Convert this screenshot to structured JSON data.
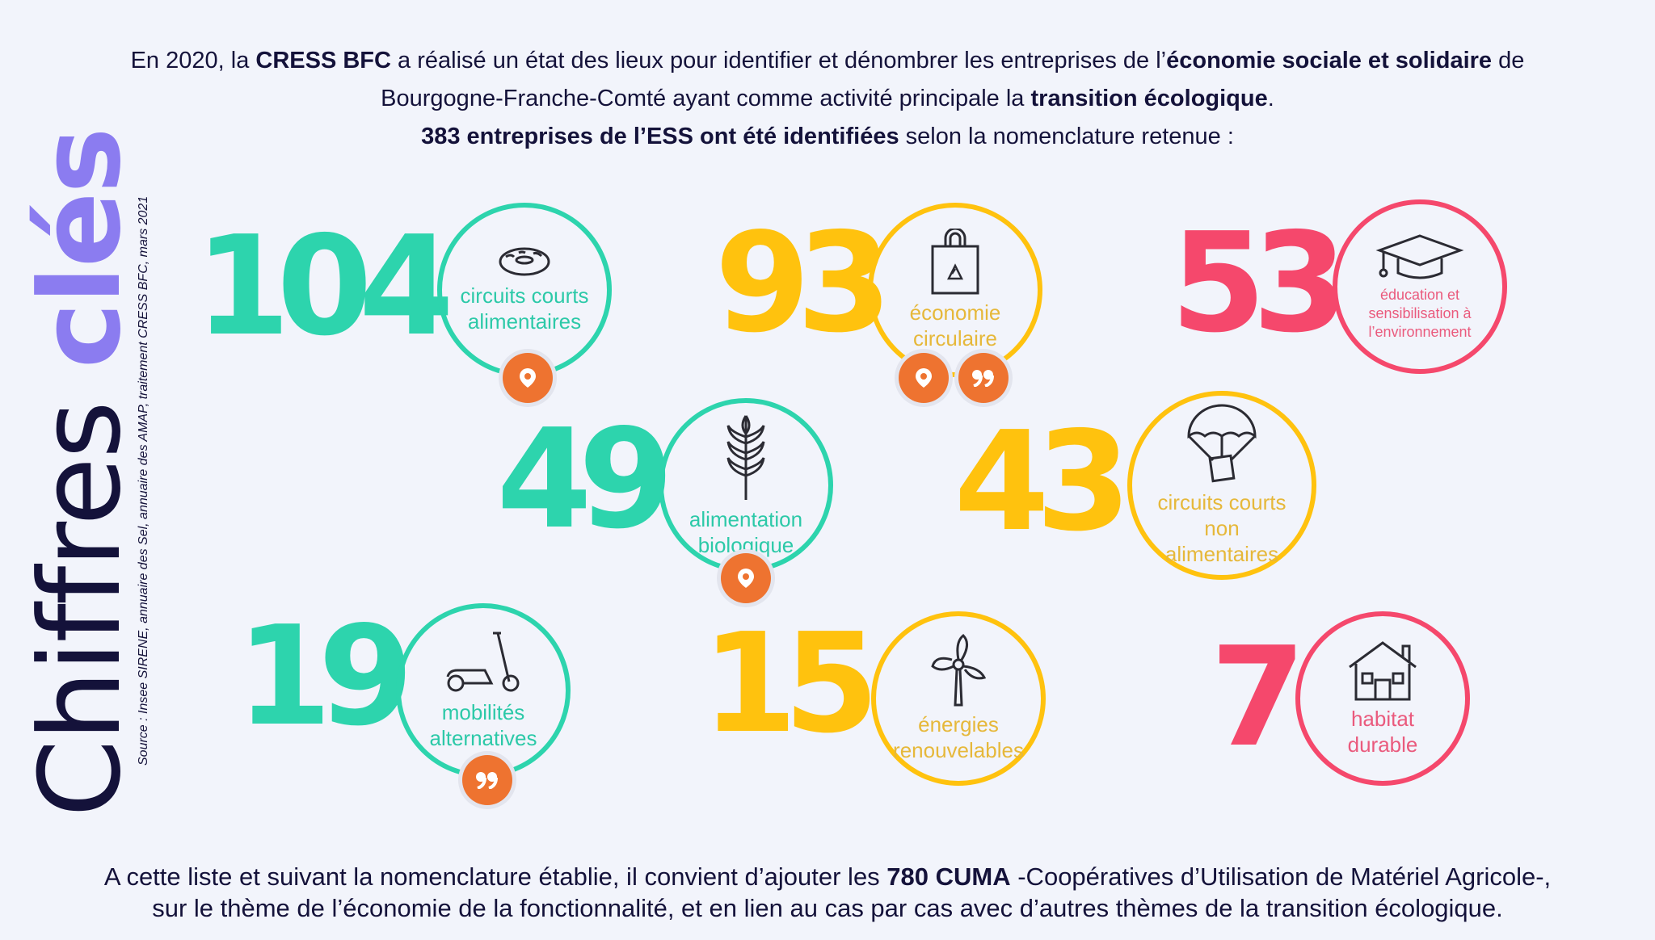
{
  "intro": {
    "line1": [
      "En 2020, la ",
      "CRESS BFC",
      " a réalisé un état des lieux pour identifier et dénombrer les entreprises de l’",
      "économie sociale et solidaire",
      " de"
    ],
    "line2": [
      "Bourgogne-Franche-Comté ayant comme activité principale la ",
      "transition écologique",
      "."
    ],
    "line3": [
      "383 entreprises de l’ESS ont été identifiées",
      " selon la nomenclature retenue :"
    ]
  },
  "title": {
    "part1": "Chiffres ",
    "part2": "clés"
  },
  "source": "Source : Insee SIRENE, annuaire des Sel, annuaire des AMAP, traitement CRESS BFC, mars 2021",
  "colors": {
    "teal": "#2dd4ad",
    "yellow": "#ffc20e",
    "pink": "#f5486c",
    "navy": "#14123a",
    "purple": "#8b7cf0",
    "badge": "#ee7330"
  },
  "stats": [
    {
      "value": "104",
      "label": "circuits courts alimentaires",
      "icon": "donut-icon",
      "color": "teal",
      "badges": [
        "map-pin-icon"
      ]
    },
    {
      "value": "93",
      "label": "économie circulaire",
      "icon": "recycle-bag-icon",
      "color": "yellow",
      "badges": [
        "map-pin-icon",
        "quote-icon"
      ]
    },
    {
      "value": "53",
      "label": "éducation et sensibilisation à l’environnement",
      "icon": "graduation-cap-icon",
      "color": "pink",
      "badges": []
    },
    {
      "value": "49",
      "label": "alimentation biologique",
      "icon": "wheat-icon",
      "color": "teal",
      "badges": [
        "map-pin-icon"
      ]
    },
    {
      "value": "43",
      "label": "circuits courts non alimentaires",
      "icon": "parachute-box-icon",
      "color": "yellow",
      "badges": []
    },
    {
      "value": "19",
      "label": "mobilités alternatives",
      "icon": "scooter-icon",
      "color": "teal",
      "badges": [
        "quote-icon"
      ]
    },
    {
      "value": "15",
      "label": "énergies renouvelables",
      "icon": "wind-turbine-icon",
      "color": "yellow",
      "badges": []
    },
    {
      "value": "7",
      "label": "habitat durable",
      "icon": "house-icon",
      "color": "pink",
      "badges": []
    }
  ],
  "outro": {
    "line1": [
      "A cette liste et suivant la nomenclature établie, il convient d’ajouter les ",
      "780 CUMA",
      " -Coopératives d’Utilisation de Matériel Agricole-,"
    ],
    "line2": "sur le thème de l’économie de la fonctionnalité, et en lien au cas par cas avec d’autres thèmes de la transition écologique."
  }
}
